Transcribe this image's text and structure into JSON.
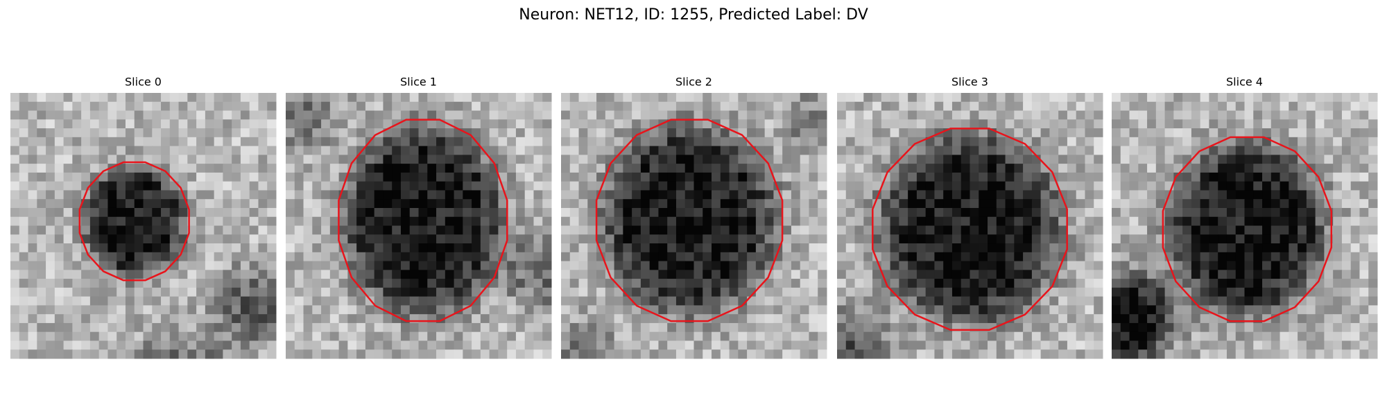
{
  "title": "Neuron: NET12, ID: 1255, Predicted Label: DV",
  "panels": [
    {
      "title": "Slice 0"
    },
    {
      "title": "Slice 1"
    },
    {
      "title": "Slice 2"
    },
    {
      "title": "Slice 3"
    },
    {
      "title": "Slice 4"
    }
  ]
}
